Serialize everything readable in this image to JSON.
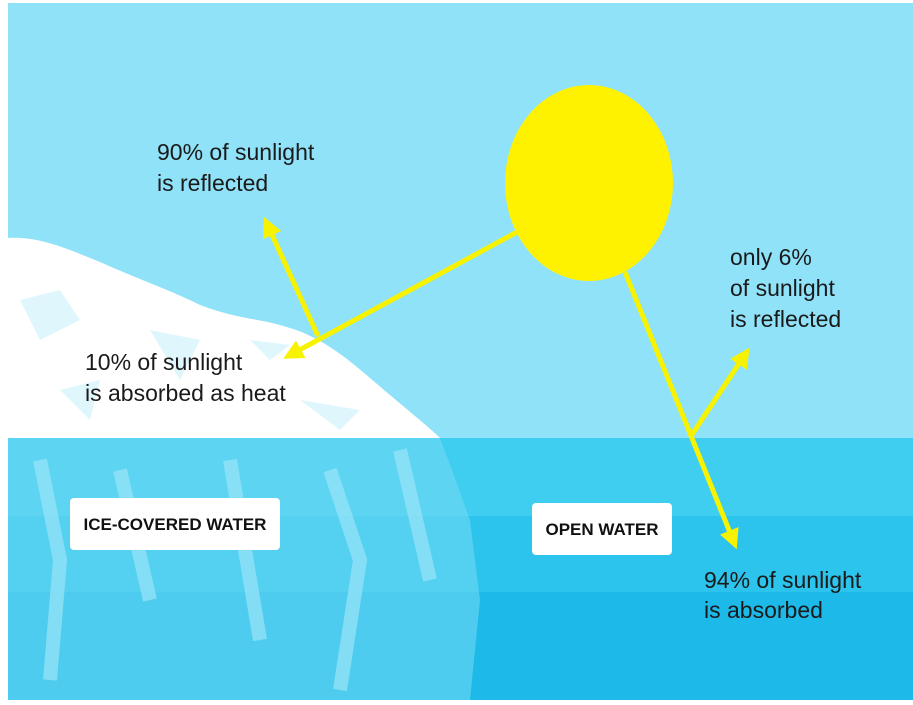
{
  "annotations": [
    {
      "lines": [
        "90% of sunlight",
        "is reflected"
      ]
    },
    {
      "lines": [
        "10% of sunlight",
        "is absorbed as heat"
      ]
    },
    {
      "lines": [
        "only 6%",
        "of sunlight",
        "is reflected"
      ]
    },
    {
      "lines": [
        "94% of sunlight",
        "is absorbed"
      ]
    }
  ],
  "labels": [
    "ICE-COVERED WATER",
    "OPEN WATER"
  ]
}
